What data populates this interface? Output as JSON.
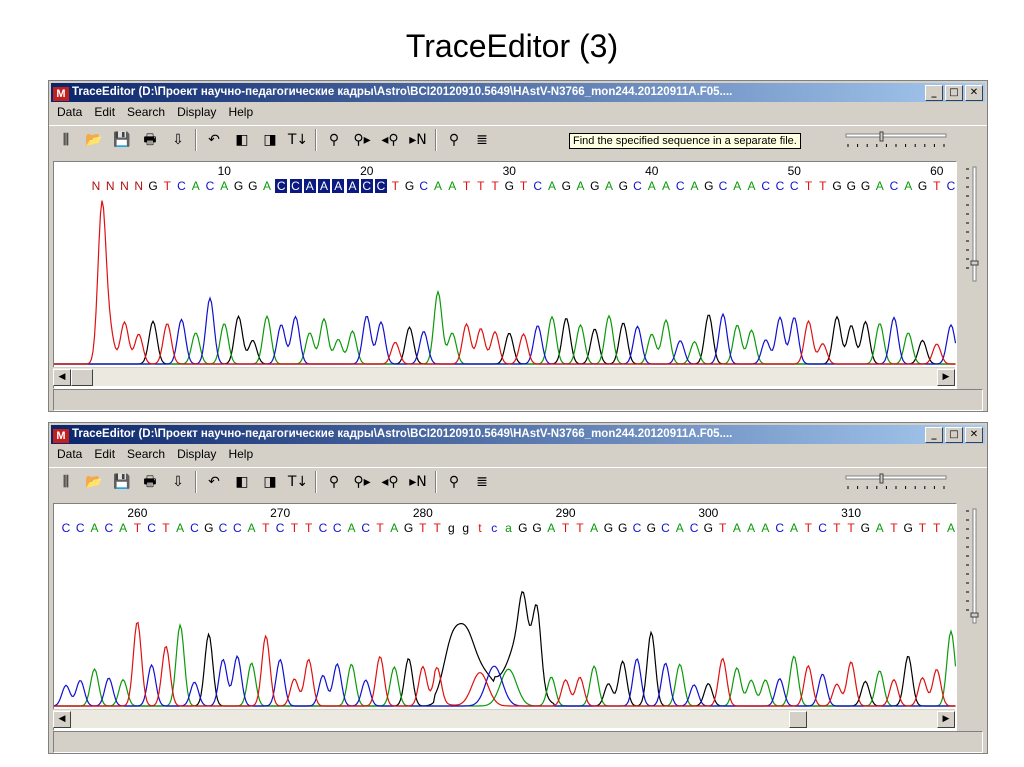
{
  "slide": {
    "title": "TraceEditor (3)"
  },
  "colors": {
    "A": "#0a9a0a",
    "C": "#1010d0",
    "G": "#000000",
    "T": "#e01010",
    "N": "#b01010",
    "highlight": "#0a1a80"
  },
  "menu": [
    "Data",
    "Edit",
    "Search",
    "Display",
    "Help"
  ],
  "toolbar_icons": [
    "sequence-icon",
    "open-folder-icon",
    "save-icon",
    "print-icon",
    "export-icon",
    "undo-icon",
    "left-panel-icon",
    "right-panel-icon",
    "sort-ta-icon",
    "find-icon",
    "find-next-icon",
    "find-previous-icon",
    "next-n-icon",
    "find-in-file-icon",
    "multi-align-icon"
  ],
  "windows": [
    {
      "title": "TraceEditor (D:\\Проект научно-педагогические кадры\\Astro\\BCI20120910.5649\\HAstV-N3766_mon244.20120911A.F05....",
      "sequence": "NNNNGTCACAGGACCAAAACCTGCAATTTGTCAGAGAGCAACAGCAACCCTTGGGACAGTC",
      "first_position": 1,
      "highlight_range": [
        14,
        21
      ],
      "ruler": [
        "10",
        "20",
        "30",
        "40",
        "50",
        "60"
      ],
      "tooltip": "Find the specified sequence in a separate file."
    },
    {
      "title": "TraceEditor (D:\\Проект научно-педагогические кадры\\Astro\\BCI20120910.5649\\HAstV-N3766_mon244.20120911A.F05....",
      "sequence": "CCACATCTACGCCATCTTCCACTAGTTggtcaGGATTAGGCGCACGTAAACATCTTGATGTTA",
      "first_position": 255,
      "ruler": [
        "260",
        "270",
        "280",
        "290",
        "300",
        "310"
      ]
    }
  ]
}
